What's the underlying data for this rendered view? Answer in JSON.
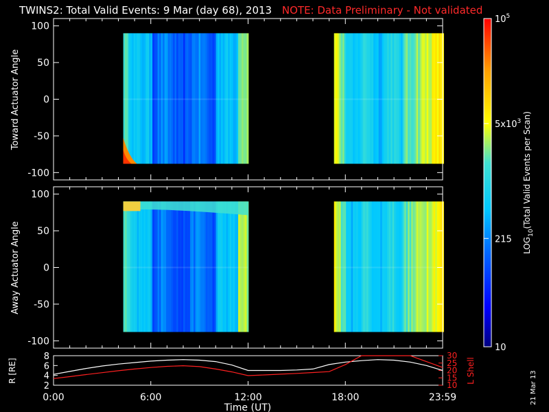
{
  "title": {
    "main": "TWINS2: Total Valid Events:  9 Mar (day  68), 2013",
    "note": "NOTE: Data Preliminary - Not validated"
  },
  "date_stamp": "21 Mar 13",
  "colors": {
    "note": "#ff2a2a",
    "ephem_R": "#ffffff",
    "ephem_L": "#ff2020"
  },
  "chart_data": [
    {
      "type": "heatmap",
      "name": "toward",
      "ylabel": "Toward Actuator Angle",
      "ylim": [
        -110,
        110
      ],
      "yticks": [
        -100,
        -50,
        0,
        50,
        100
      ],
      "data_blocks": [
        {
          "x_start": 4.3,
          "x_end": 12.0,
          "y_start": -88,
          "y_end": 90
        },
        {
          "x_start": 17.3,
          "x_end": 24.0,
          "y_start": -88,
          "y_end": 90
        }
      ]
    },
    {
      "type": "heatmap",
      "name": "away",
      "ylabel": "Away Actuator Angle",
      "ylim": [
        -110,
        110
      ],
      "yticks": [
        -100,
        -50,
        0,
        50,
        100
      ],
      "data_blocks": [
        {
          "x_start": 4.3,
          "x_end": 12.0,
          "y_start": -88,
          "y_end": 90
        },
        {
          "x_start": 17.3,
          "x_end": 24.0,
          "y_start": -88,
          "y_end": 90
        }
      ]
    },
    {
      "type": "line",
      "name": "ephemeris",
      "ylabel_left": "R [RE]",
      "ylabel_right": "L Shell",
      "ylim_left": [
        2,
        8
      ],
      "ylim_right": [
        10,
        30
      ],
      "yticks_left": [
        2,
        4,
        6,
        8
      ],
      "yticks_right": [
        10,
        15,
        20,
        25,
        30
      ],
      "x": [
        0,
        1,
        2,
        3,
        4,
        5,
        6,
        7,
        8,
        9,
        10,
        11,
        12,
        13,
        14,
        15,
        16,
        17,
        18,
        19,
        20,
        21,
        22,
        23,
        24
      ],
      "series": [
        {
          "name": "R",
          "values": [
            4.2,
            4.8,
            5.4,
            5.9,
            6.3,
            6.6,
            6.9,
            7.1,
            7.2,
            7.1,
            6.8,
            6.1,
            5.0,
            5.0,
            5.0,
            5.1,
            5.3,
            6.2,
            6.7,
            7.0,
            7.2,
            7.1,
            6.7,
            6.0,
            5.0
          ]
        },
        {
          "name": "L",
          "values": [
            14.5,
            15.8,
            17.2,
            18.5,
            19.8,
            21.0,
            22.0,
            22.8,
            23.2,
            22.6,
            21.0,
            19.0,
            16.5,
            17.0,
            17.5,
            18.0,
            18.6,
            19.2,
            24.0,
            31.0,
            32.0,
            32.0,
            30.0,
            26.0,
            22.0
          ]
        }
      ]
    }
  ],
  "x_axis": {
    "label": "Time (UT)",
    "xlim": [
      0,
      24
    ],
    "ticks": [
      0,
      6,
      12,
      18,
      24
    ],
    "tick_labels": [
      "0:00",
      "6:00",
      "12:00",
      "18:00",
      "23:59"
    ]
  },
  "colorbar": {
    "label": "LOG10(Total Valid Events per Scan)",
    "label_parts": {
      "a": "LOG",
      "sub": "10",
      "b": "(Total Valid Events per Scan)"
    },
    "ticks": [
      {
        "label": "10",
        "frac": 0.0
      },
      {
        "label": "215",
        "frac": 0.33
      },
      {
        "label": "5x10^3",
        "label_parts": {
          "base": "5x10",
          "exp": "3"
        },
        "frac": 0.68
      },
      {
        "label": "10^5",
        "label_parts": {
          "base": "10",
          "exp": "5"
        },
        "frac": 1.0
      }
    ]
  }
}
